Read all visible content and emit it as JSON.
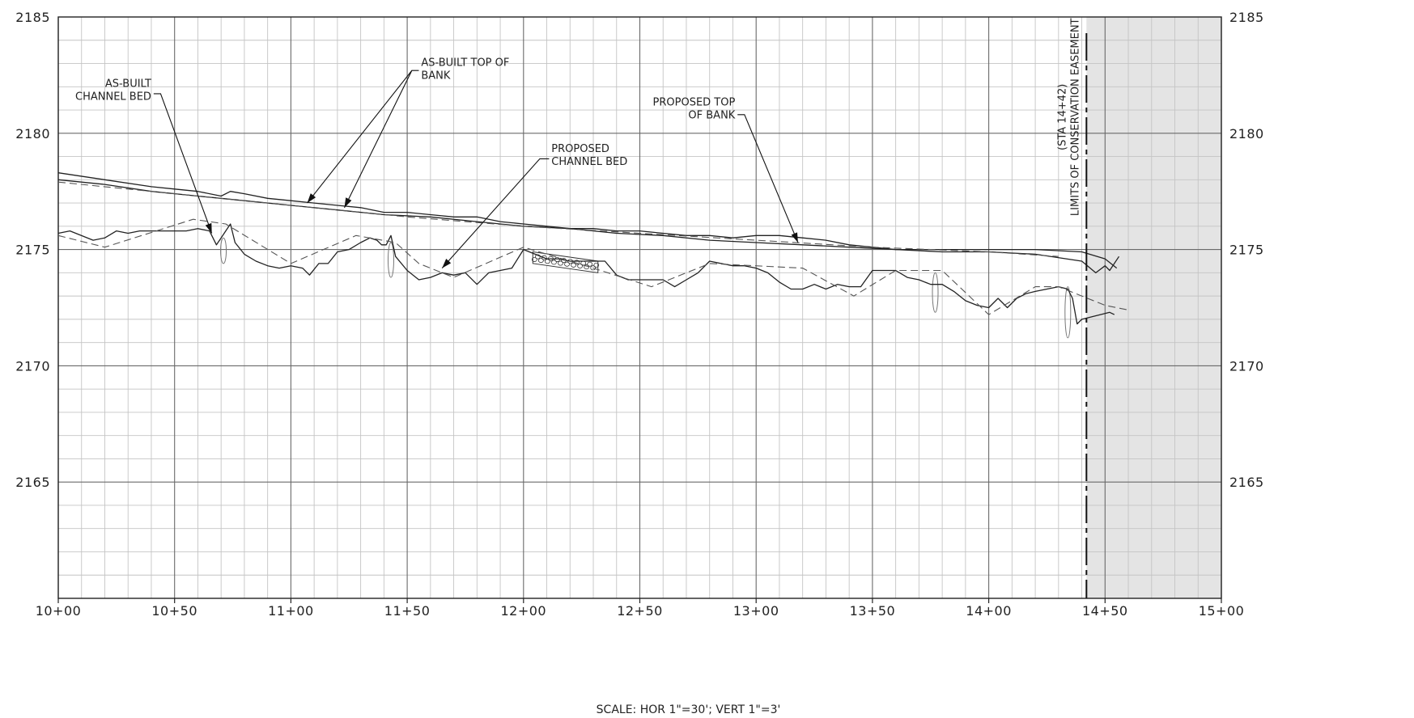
{
  "chart_data": {
    "type": "line",
    "title": "",
    "xlabel": "",
    "ylabel": "",
    "scale_note": "SCALE: HOR 1\"=30'; VERT 1\"=3'",
    "xlim": [
      1000,
      1500
    ],
    "ylim": [
      2160,
      2185
    ],
    "x_major_every": 50,
    "x_minor_every": 10,
    "y_major_every": 5,
    "y_minor_every": 1,
    "grid": true,
    "x_ticks": [
      {
        "value": 1000,
        "label": "10+00"
      },
      {
        "value": 1050,
        "label": "10+50"
      },
      {
        "value": 1100,
        "label": "11+00"
      },
      {
        "value": 1150,
        "label": "11+50"
      },
      {
        "value": 1200,
        "label": "12+00"
      },
      {
        "value": 1250,
        "label": "12+50"
      },
      {
        "value": 1300,
        "label": "13+00"
      },
      {
        "value": 1350,
        "label": "13+50"
      },
      {
        "value": 1400,
        "label": "14+00"
      },
      {
        "value": 1450,
        "label": "14+50"
      },
      {
        "value": 1500,
        "label": "15+00"
      }
    ],
    "y_ticks": [
      {
        "value": 2185,
        "label": "2185"
      },
      {
        "value": 2180,
        "label": "2180"
      },
      {
        "value": 2175,
        "label": "2175"
      },
      {
        "value": 2170,
        "label": "2170"
      },
      {
        "value": 2165,
        "label": "2165"
      }
    ],
    "series": [
      {
        "key": "asbuilt_top",
        "style": "solid",
        "color": "#222222",
        "x": [
          1000,
          1020,
          1040,
          1050,
          1060,
          1070,
          1074,
          1080,
          1090,
          1100,
          1110,
          1120,
          1130,
          1140,
          1150,
          1160,
          1170,
          1180,
          1190,
          1200,
          1210,
          1220,
          1230,
          1240,
          1250,
          1260,
          1270,
          1280,
          1290,
          1300,
          1310,
          1320,
          1330,
          1340,
          1350,
          1360,
          1380,
          1400,
          1410,
          1420,
          1440,
          1450,
          1455
        ],
        "y": [
          2178.3,
          2178.0,
          2177.7,
          2177.6,
          2177.5,
          2177.3,
          2177.5,
          2177.4,
          2177.2,
          2177.1,
          2177.0,
          2176.9,
          2176.8,
          2176.6,
          2176.6,
          2176.5,
          2176.4,
          2176.4,
          2176.2,
          2176.1,
          2176.0,
          2175.9,
          2175.9,
          2175.8,
          2175.8,
          2175.7,
          2175.6,
          2175.6,
          2175.5,
          2175.6,
          2175.6,
          2175.5,
          2175.4,
          2175.2,
          2175.1,
          2175.0,
          2175.0,
          2175.0,
          2175.0,
          2175.0,
          2174.9,
          2174.6,
          2174.2
        ]
      },
      {
        "key": "asbuilt_top_2",
        "style": "solid",
        "color": "#222222",
        "x": [
          1000,
          1020,
          1040,
          1060,
          1080,
          1100,
          1120,
          1140,
          1160,
          1180,
          1200,
          1220,
          1240,
          1260,
          1280,
          1300,
          1320,
          1340,
          1360,
          1380,
          1400,
          1420,
          1440,
          1446,
          1450,
          1452,
          1456
        ],
        "y": [
          2178.0,
          2177.8,
          2177.5,
          2177.3,
          2177.1,
          2176.9,
          2176.7,
          2176.5,
          2176.4,
          2176.2,
          2176.0,
          2175.9,
          2175.7,
          2175.6,
          2175.4,
          2175.3,
          2175.2,
          2175.1,
          2175.0,
          2174.9,
          2174.9,
          2174.8,
          2174.5,
          2174.0,
          2174.3,
          2174.1,
          2174.7
        ]
      },
      {
        "key": "proposed_top",
        "style": "dashed",
        "color": "#555555",
        "x": [
          1000,
          1050,
          1100,
          1150,
          1200,
          1250,
          1300,
          1350,
          1400,
          1430
        ],
        "y": [
          2177.9,
          2177.4,
          2176.9,
          2176.4,
          2176.0,
          2175.7,
          2175.4,
          2175.1,
          2174.9,
          2174.7
        ]
      },
      {
        "key": "asbuilt_bed",
        "style": "solid",
        "color": "#222222",
        "x": [
          1000,
          1005,
          1015,
          1020,
          1025,
          1030,
          1035,
          1045,
          1055,
          1060,
          1065,
          1068,
          1070,
          1072,
          1074,
          1076,
          1080,
          1085,
          1090,
          1095,
          1100,
          1105,
          1108,
          1112,
          1116,
          1120,
          1125,
          1130,
          1134,
          1137,
          1139,
          1141,
          1143,
          1145,
          1150,
          1155,
          1160,
          1165,
          1170,
          1175,
          1180,
          1185,
          1190,
          1195,
          1200,
          1205,
          1210,
          1215,
          1220,
          1225,
          1230,
          1235,
          1240,
          1245,
          1250,
          1255,
          1260,
          1265,
          1270,
          1275,
          1280,
          1285,
          1290,
          1295,
          1300,
          1305,
          1310,
          1315,
          1320,
          1325,
          1330,
          1335,
          1340,
          1345,
          1350,
          1355,
          1360,
          1365,
          1370,
          1375,
          1380,
          1385,
          1390,
          1395,
          1400,
          1404,
          1408,
          1412,
          1416,
          1420,
          1425,
          1430,
          1434,
          1436,
          1438,
          1440,
          1444,
          1448,
          1452,
          1454
        ],
        "y": [
          2175.7,
          2175.8,
          2175.4,
          2175.5,
          2175.8,
          2175.7,
          2175.8,
          2175.8,
          2175.8,
          2175.9,
          2175.8,
          2175.2,
          2175.5,
          2175.8,
          2176.1,
          2175.3,
          2174.8,
          2174.5,
          2174.3,
          2174.2,
          2174.3,
          2174.2,
          2173.9,
          2174.4,
          2174.4,
          2174.9,
          2175.0,
          2175.3,
          2175.5,
          2175.4,
          2175.2,
          2175.2,
          2175.6,
          2174.7,
          2174.1,
          2173.7,
          2173.8,
          2174.0,
          2173.9,
          2174.0,
          2173.5,
          2174.0,
          2174.1,
          2174.2,
          2175.0,
          2174.8,
          2174.6,
          2174.6,
          2174.5,
          2174.5,
          2174.5,
          2174.5,
          2173.9,
          2173.7,
          2173.7,
          2173.7,
          2173.7,
          2173.4,
          2173.7,
          2174.0,
          2174.5,
          2174.4,
          2174.3,
          2174.3,
          2174.2,
          2174.0,
          2173.6,
          2173.3,
          2173.3,
          2173.5,
          2173.3,
          2173.5,
          2173.4,
          2173.4,
          2174.1,
          2174.1,
          2174.1,
          2173.8,
          2173.7,
          2173.5,
          2173.5,
          2173.2,
          2172.8,
          2172.6,
          2172.5,
          2172.9,
          2172.5,
          2172.9,
          2173.1,
          2173.2,
          2173.3,
          2173.4,
          2173.3,
          2172.9,
          2171.8,
          2172.0,
          2172.1,
          2172.2,
          2172.3,
          2172.2
        ]
      },
      {
        "key": "proposed_bed",
        "style": "dashed",
        "color": "#555555",
        "x": [
          1000,
          1020,
          1058,
          1072,
          1100,
          1128,
          1145,
          1155,
          1170,
          1200,
          1230,
          1255,
          1280,
          1320,
          1342,
          1360,
          1380,
          1400,
          1420,
          1430,
          1450,
          1460
        ],
        "y": [
          2175.6,
          2175.1,
          2176.3,
          2176.1,
          2174.4,
          2175.6,
          2175.3,
          2174.4,
          2173.8,
          2175.1,
          2174.2,
          2173.4,
          2174.4,
          2174.2,
          2173.0,
          2174.1,
          2174.1,
          2172.2,
          2173.4,
          2173.4,
          2172.6,
          2172.4
        ]
      }
    ],
    "structures": [
      {
        "key": "log-vane-1",
        "x": 1071,
        "y_top": 2175.5,
        "y_bottom": 2174.4
      },
      {
        "key": "log-vane-2",
        "x": 1143,
        "y_top": 2175.3,
        "y_bottom": 2173.8
      },
      {
        "key": "log-vane-3",
        "x": 1377,
        "y_top": 2174.0,
        "y_bottom": 2172.3
      },
      {
        "key": "log-vane-4",
        "x": 1434,
        "y_top": 2173.4,
        "y_bottom": 2171.2
      }
    ],
    "riprap_zone": {
      "x_start": 1204,
      "x_end": 1232,
      "y_top_start": 2174.9,
      "y_top_end": 2174.5,
      "thickness": 0.5
    },
    "easement": {
      "station": 1442,
      "station_label": "(STA 14+42)",
      "label": "LIMITS OF CONSERVATION EASEMENT",
      "shade_to": 1500
    },
    "annotations": [
      {
        "key": "asbuilt-channel-bed",
        "lines": [
          "AS-BUILT",
          "CHANNEL BED"
        ],
        "align": "end",
        "text_x": 1040,
        "text_y": 2182.0
      },
      {
        "key": "asbuilt-top-of-bank",
        "lines": [
          "AS-BUILT TOP OF",
          "BANK"
        ],
        "align": "start",
        "text_x": 1156,
        "text_y": 2182.9
      },
      {
        "key": "proposed-channel-bed",
        "lines": [
          "PROPOSED",
          "CHANNEL BED"
        ],
        "align": "start",
        "text_x": 1212,
        "text_y": 2179.2
      },
      {
        "key": "proposed-top-of-bank",
        "lines": [
          "PROPOSED TOP",
          "OF BANK"
        ],
        "align": "end",
        "text_x": 1291,
        "text_y": 2181.2
      }
    ],
    "leaders": [
      {
        "key": "asbuilt-channel-bed",
        "x": [
          1041,
          1044,
          1066
        ],
        "y": [
          2181.7,
          2181.7,
          2175.7
        ]
      },
      {
        "key": "asbuilt-top-of-bank-1",
        "x": [
          1155,
          1152,
          1107
        ],
        "y": [
          2182.7,
          2182.7,
          2177.0
        ]
      },
      {
        "key": "asbuilt-top-of-bank-2",
        "x": [
          1152,
          1123
        ],
        "y": [
          2182.7,
          2176.8
        ]
      },
      {
        "key": "proposed-channel-bed",
        "x": [
          1211,
          1207,
          1165
        ],
        "y": [
          2178.9,
          2178.9,
          2174.2
        ]
      },
      {
        "key": "proposed-top-of-bank",
        "x": [
          1292,
          1295,
          1318
        ],
        "y": [
          2180.8,
          2180.8,
          2175.3
        ]
      }
    ]
  }
}
